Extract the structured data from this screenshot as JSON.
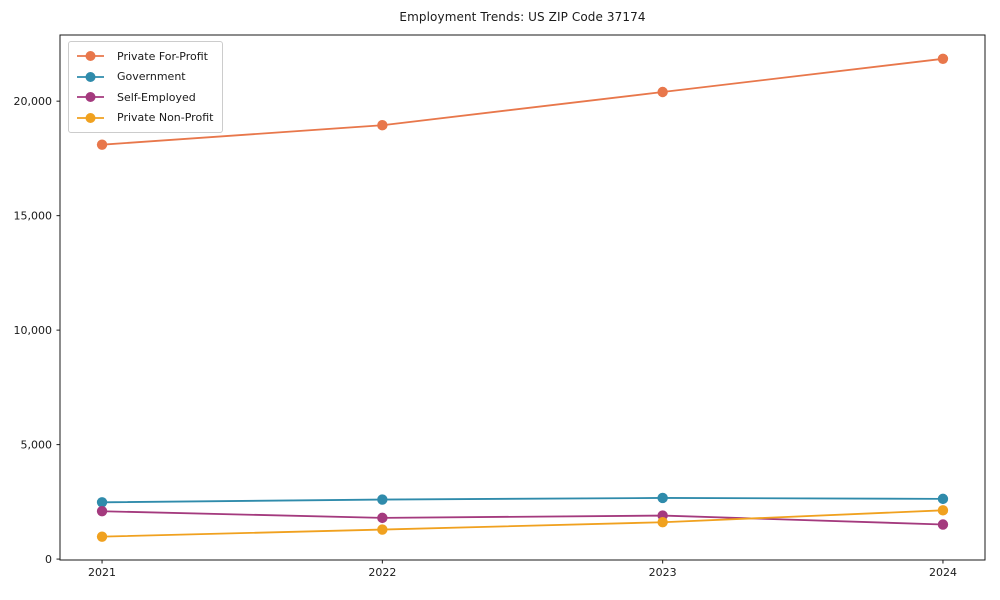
{
  "chart_data": {
    "type": "line",
    "title": "Employment Trends: US ZIP Code 37174",
    "xlabel": "",
    "ylabel": "",
    "categories": [
      "2021",
      "2022",
      "2023",
      "2024"
    ],
    "series": [
      {
        "name": "Private For-Profit",
        "color": "#e8774b",
        "values": [
          18100,
          18950,
          20400,
          21850
        ]
      },
      {
        "name": "Government",
        "color": "#2f8bab",
        "values": [
          2480,
          2600,
          2670,
          2630
        ]
      },
      {
        "name": "Self-Employed",
        "color": "#a43a7e",
        "values": [
          2090,
          1800,
          1900,
          1510
        ]
      },
      {
        "name": "Private Non-Profit",
        "color": "#f0a11f",
        "values": [
          980,
          1290,
          1610,
          2130
        ]
      }
    ],
    "yticks": [
      {
        "value": 0,
        "label": "0"
      },
      {
        "value": 5000,
        "label": "5,000"
      },
      {
        "value": 10000,
        "label": "10,000"
      },
      {
        "value": 15000,
        "label": "15,000"
      },
      {
        "value": 20000,
        "label": "20,000"
      }
    ],
    "ylim": [
      -40,
      22890
    ],
    "grid": false,
    "legend_position": "upper-left",
    "frame": "box",
    "axis_color": "#1a1a1a",
    "text_color": "#1a1a1a",
    "background_color": "#ffffff"
  }
}
